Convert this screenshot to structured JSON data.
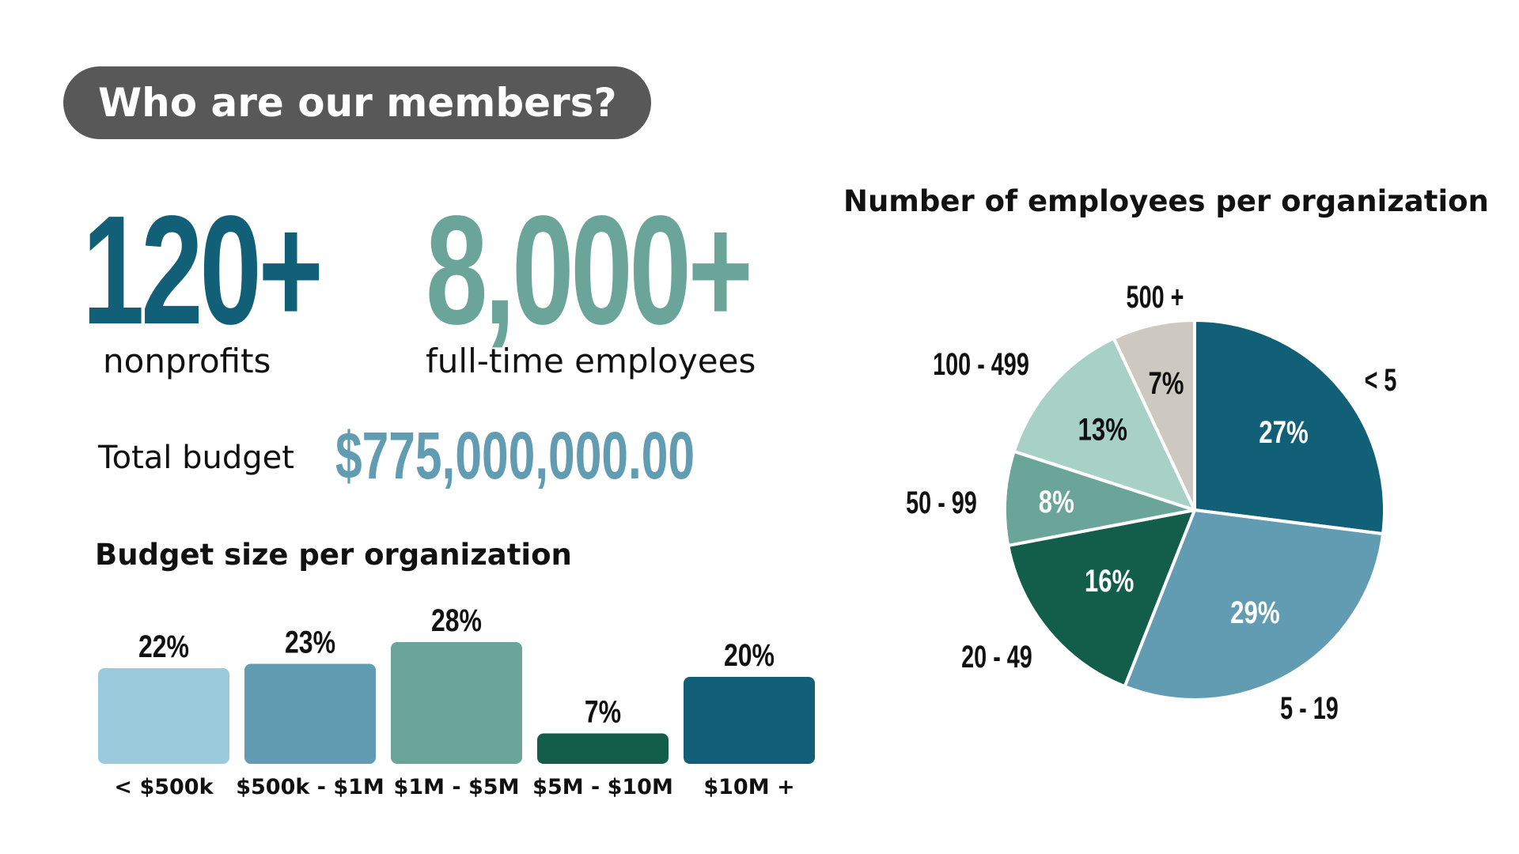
{
  "header": {
    "title": "Who are our members?"
  },
  "stats": {
    "nonprofits_value": "120+",
    "nonprofits_label": "nonprofits",
    "employees_value": "8,000+",
    "employees_label": "full-time employees",
    "budget_label": "Total budget",
    "budget_value": "$775,000,000.00"
  },
  "chart_data": [
    {
      "type": "bar",
      "title": "Budget size per organization",
      "categories": [
        "< $500k",
        "$500k - $1M",
        "$1M - $5M",
        "$5M - $10M",
        "$10M +"
      ],
      "values": [
        22,
        23,
        28,
        7,
        20
      ],
      "value_labels": [
        "22%",
        "23%",
        "28%",
        "7%",
        "20%"
      ],
      "colors": [
        "#9ccadd",
        "#619cb2",
        "#6ba59a",
        "#125e4b",
        "#126078"
      ],
      "unit": "%",
      "grid": false,
      "legend": "none"
    },
    {
      "type": "pie",
      "title": "Number of employees per organization",
      "categories": [
        "< 5",
        "5 - 19",
        "20 - 49",
        "50 - 99",
        "100 - 499",
        "500 +"
      ],
      "values": [
        27,
        29,
        16,
        8,
        13,
        7
      ],
      "value_labels": [
        "27%",
        "29%",
        "16%",
        "8%",
        "13%",
        "7%"
      ],
      "colors": [
        "#126078",
        "#619cb2",
        "#125e4b",
        "#6ba59a",
        "#a8d1c6",
        "#cdc8c0"
      ],
      "text_colors": [
        "#ffffff",
        "#ffffff",
        "#ffffff",
        "#ffffff",
        "#111111",
        "#111111"
      ],
      "unit": "%",
      "legend": "none"
    }
  ]
}
